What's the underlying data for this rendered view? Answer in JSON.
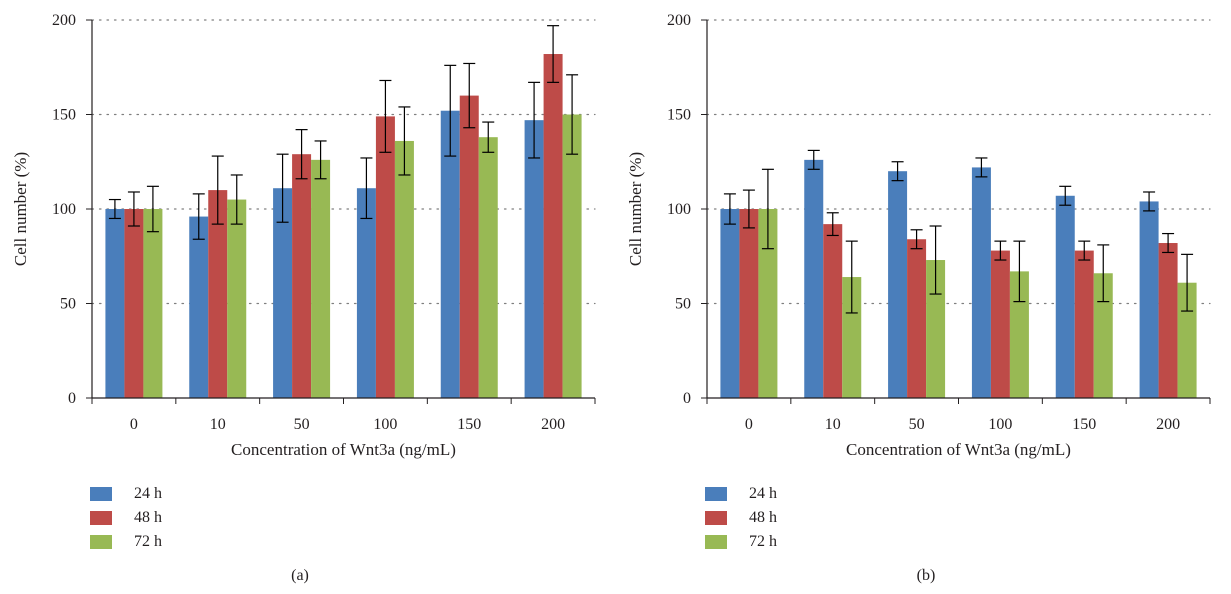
{
  "colors": {
    "24h": "#4a7ebb",
    "48h": "#be4b48",
    "72h": "#98b954",
    "axis": "#231f20",
    "grid": "#7f7f7f"
  },
  "legend": [
    {
      "label": "24 h",
      "color": "#4a7ebb"
    },
    {
      "label": "48 h",
      "color": "#be4b48"
    },
    {
      "label": "72 h",
      "color": "#98b954"
    }
  ],
  "chart_data": [
    {
      "type": "bar",
      "panel_label": "(a)",
      "xlabel": "Concentration of Wnt3a (ng/mL)",
      "ylabel": "Cell number (%)",
      "categories": [
        "0",
        "10",
        "50",
        "100",
        "150",
        "200"
      ],
      "ylim": [
        0,
        200
      ],
      "yticks": [
        "0",
        "50",
        "100",
        "150",
        "200"
      ],
      "grid": "dotted horizontal",
      "legend_position": "bottom-left",
      "series": [
        {
          "name": "24 h",
          "color": "#4a7ebb",
          "values": [
            100,
            96,
            111,
            111,
            152,
            147
          ],
          "errors": [
            5,
            12,
            18,
            16,
            24,
            20
          ]
        },
        {
          "name": "48 h",
          "color": "#be4b48",
          "values": [
            100,
            110,
            129,
            149,
            160,
            182
          ],
          "errors": [
            9,
            18,
            13,
            19,
            17,
            15
          ]
        },
        {
          "name": "72 h",
          "color": "#98b954",
          "values": [
            100,
            105,
            126,
            136,
            138,
            150
          ],
          "errors": [
            12,
            13,
            10,
            18,
            8,
            21
          ]
        }
      ]
    },
    {
      "type": "bar",
      "panel_label": "(b)",
      "xlabel": "Concentration of Wnt3a (ng/mL)",
      "ylabel": "Cell number (%)",
      "categories": [
        "0",
        "10",
        "50",
        "100",
        "150",
        "200"
      ],
      "ylim": [
        0,
        200
      ],
      "yticks": [
        "0",
        "50",
        "100",
        "150",
        "200"
      ],
      "grid": "dotted horizontal",
      "legend_position": "bottom-left",
      "series": [
        {
          "name": "24 h",
          "color": "#4a7ebb",
          "values": [
            100,
            126,
            120,
            122,
            107,
            104
          ],
          "errors": [
            8,
            5,
            5,
            5,
            5,
            5
          ]
        },
        {
          "name": "48 h",
          "color": "#be4b48",
          "values": [
            100,
            92,
            84,
            78,
            78,
            82
          ],
          "errors": [
            10,
            6,
            5,
            5,
            5,
            5
          ]
        },
        {
          "name": "72 h",
          "color": "#98b954",
          "values": [
            100,
            64,
            73,
            67,
            66,
            61
          ],
          "errors": [
            21,
            19,
            18,
            16,
            15,
            15
          ]
        }
      ]
    }
  ]
}
